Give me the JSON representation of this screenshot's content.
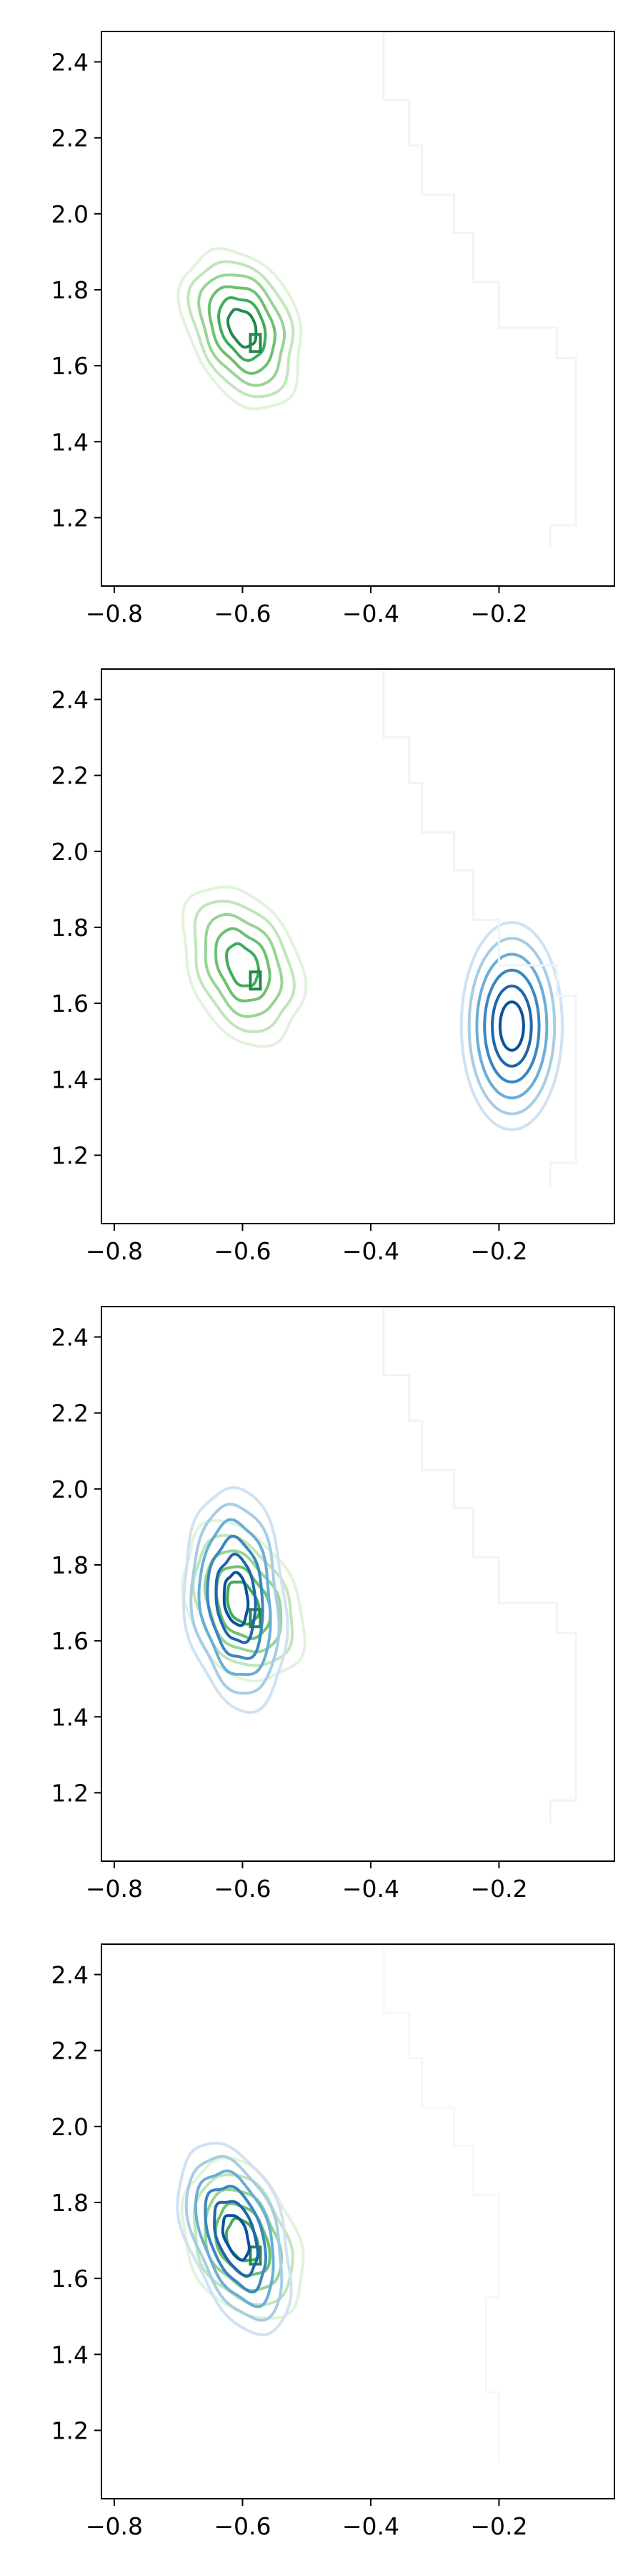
{
  "figure": {
    "background": "#ffffff"
  },
  "chart_data": [
    {
      "type": "contour",
      "panel": 1,
      "xlim": [
        -0.82,
        -0.02
      ],
      "ylim": [
        1.02,
        2.48
      ],
      "x_ticks": [
        -0.8,
        -0.6,
        -0.4,
        -0.2
      ],
      "y_ticks": [
        1.2,
        1.4,
        1.6,
        1.8,
        2.0,
        2.2,
        2.4
      ],
      "x_tick_labels": [
        "−0.8",
        "−0.6",
        "−0.4",
        "−0.2"
      ],
      "y_tick_labels": [
        "1.2",
        "1.4",
        "1.6",
        "1.8",
        "2.0",
        "2.2",
        "2.4"
      ],
      "grid": false,
      "legend": "none",
      "series": [
        {
          "colormap": "Greens",
          "colors": [
            "#e1f3dc",
            "#c0e6b9",
            "#98d594",
            "#6ec071",
            "#41ab5d",
            "#23884c"
          ],
          "center": [
            -0.6,
            1.7
          ],
          "spread": [
            0.085,
            0.2
          ],
          "tilt": -0.28,
          "peak_secondary": [
            -0.58,
            1.66
          ],
          "levels": 6
        },
        {
          "colormap": "Blues",
          "colors": [
            "#eef4fb"
          ],
          "kind": "faint-outline",
          "points": [
            [
              -0.36,
              2.48
            ],
            [
              -0.38,
              2.3
            ],
            [
              -0.34,
              2.18
            ],
            [
              -0.32,
              2.05
            ],
            [
              -0.27,
              1.95
            ],
            [
              -0.24,
              1.82
            ],
            [
              -0.2,
              1.7
            ],
            [
              -0.11,
              1.62
            ],
            [
              -0.08,
              1.55
            ],
            [
              -0.08,
              1.18
            ],
            [
              -0.12,
              1.12
            ]
          ]
        }
      ]
    },
    {
      "type": "contour",
      "panel": 2,
      "xlim": [
        -0.82,
        -0.02
      ],
      "ylim": [
        1.02,
        2.48
      ],
      "x_ticks": [
        -0.8,
        -0.6,
        -0.4,
        -0.2
      ],
      "y_ticks": [
        1.2,
        1.4,
        1.6,
        1.8,
        2.0,
        2.2,
        2.4
      ],
      "x_tick_labels": [
        "−0.8",
        "−0.6",
        "−0.4",
        "−0.2"
      ],
      "y_tick_labels": [
        "1.2",
        "1.4",
        "1.6",
        "1.8",
        "2.0",
        "2.2",
        "2.4"
      ],
      "grid": false,
      "legend": "none",
      "series": [
        {
          "colormap": "Greens",
          "colors": [
            "#e1f3dc",
            "#c0e6b9",
            "#98d594",
            "#6ec071",
            "#41ab5d",
            "#23884c"
          ],
          "center": [
            -0.6,
            1.7
          ],
          "spread": [
            0.085,
            0.2
          ],
          "tilt": -0.28,
          "peak_secondary": [
            -0.58,
            1.66
          ],
          "levels": 5
        },
        {
          "colormap": "Blues",
          "colors": [
            "#d0e1f2",
            "#a6cde4",
            "#6aaed6",
            "#3a87c0",
            "#1f66ab",
            "#08519c"
          ],
          "center": [
            -0.18,
            1.54
          ],
          "spread": [
            0.075,
            0.26
          ],
          "tilt": 0.0,
          "levels": 6
        },
        {
          "colormap": "Blues",
          "colors": [
            "#eef4fb"
          ],
          "kind": "faint-outline",
          "points": [
            [
              -0.36,
              2.48
            ],
            [
              -0.38,
              2.3
            ],
            [
              -0.34,
              2.18
            ],
            [
              -0.32,
              2.05
            ],
            [
              -0.27,
              1.95
            ],
            [
              -0.24,
              1.82
            ],
            [
              -0.2,
              1.7
            ],
            [
              -0.11,
              1.62
            ],
            [
              -0.08,
              1.55
            ],
            [
              -0.08,
              1.18
            ],
            [
              -0.12,
              1.12
            ]
          ]
        }
      ]
    },
    {
      "type": "contour",
      "panel": 3,
      "xlim": [
        -0.82,
        -0.02
      ],
      "ylim": [
        1.02,
        2.48
      ],
      "x_ticks": [
        -0.8,
        -0.6,
        -0.4,
        -0.2
      ],
      "y_ticks": [
        1.2,
        1.4,
        1.6,
        1.8,
        2.0,
        2.2,
        2.4
      ],
      "x_tick_labels": [
        "−0.8",
        "−0.6",
        "−0.4",
        "−0.2"
      ],
      "y_tick_labels": [
        "1.2",
        "1.4",
        "1.6",
        "1.8",
        "2.0",
        "2.2",
        "2.4"
      ],
      "grid": false,
      "legend": "none",
      "series": [
        {
          "colormap": "Greens",
          "colors": [
            "#e1f3dc",
            "#c0e6b9",
            "#98d594",
            "#6ec071",
            "#41ab5d",
            "#23884c"
          ],
          "center": [
            -0.6,
            1.7
          ],
          "spread": [
            0.085,
            0.2
          ],
          "tilt": -0.28,
          "peak_secondary": [
            -0.58,
            1.66
          ],
          "levels": 5
        },
        {
          "colormap": "Blues",
          "colors": [
            "#d0e1f2",
            "#a6cde4",
            "#6aaed6",
            "#3a87c0",
            "#1f66ab",
            "#08519c"
          ],
          "center": [
            -0.61,
            1.71
          ],
          "spread": [
            0.075,
            0.28
          ],
          "tilt": -0.08,
          "levels": 6
        },
        {
          "colormap": "Blues",
          "colors": [
            "#eef4fb"
          ],
          "kind": "faint-outline",
          "points": [
            [
              -0.36,
              2.48
            ],
            [
              -0.38,
              2.3
            ],
            [
              -0.34,
              2.18
            ],
            [
              -0.32,
              2.05
            ],
            [
              -0.27,
              1.95
            ],
            [
              -0.24,
              1.82
            ],
            [
              -0.2,
              1.7
            ],
            [
              -0.11,
              1.62
            ],
            [
              -0.08,
              1.55
            ],
            [
              -0.08,
              1.18
            ],
            [
              -0.12,
              1.12
            ]
          ]
        }
      ]
    },
    {
      "type": "contour",
      "panel": 4,
      "xlim": [
        -0.82,
        -0.02
      ],
      "ylim": [
        1.02,
        2.48
      ],
      "x_ticks": [
        -0.8,
        -0.6,
        -0.4,
        -0.2
      ],
      "y_ticks": [
        1.2,
        1.4,
        1.6,
        1.8,
        2.0,
        2.2,
        2.4
      ],
      "x_tick_labels": [
        "−0.8",
        "−0.6",
        "−0.4",
        "−0.2"
      ],
      "y_tick_labels": [
        "1.2",
        "1.4",
        "1.6",
        "1.8",
        "2.0",
        "2.2",
        "2.4"
      ],
      "grid": false,
      "legend": "none",
      "series": [
        {
          "colormap": "Greens",
          "colors": [
            "#e1f3dc",
            "#c0e6b9",
            "#98d594",
            "#6ec071",
            "#41ab5d",
            "#23884c"
          ],
          "center": [
            -0.6,
            1.7
          ],
          "spread": [
            0.085,
            0.2
          ],
          "tilt": -0.28,
          "peak_secondary": [
            -0.58,
            1.66
          ],
          "levels": 5
        },
        {
          "colormap": "Blues",
          "colors": [
            "#d0e1f2",
            "#a6cde4",
            "#6aaed6",
            "#3a87c0",
            "#1f66ab",
            "#08519c"
          ],
          "center": [
            -0.61,
            1.71
          ],
          "spread": [
            0.075,
            0.24
          ],
          "tilt": -0.3,
          "levels": 6
        },
        {
          "colormap": "Greens",
          "colors": [
            "#f4faf1"
          ],
          "kind": "faint-outline",
          "points": [
            [
              -0.36,
              2.48
            ],
            [
              -0.38,
              2.3
            ],
            [
              -0.34,
              2.18
            ],
            [
              -0.32,
              2.05
            ],
            [
              -0.27,
              1.95
            ],
            [
              -0.24,
              1.82
            ],
            [
              -0.2,
              1.7
            ],
            [
              -0.2,
              1.55
            ],
            [
              -0.22,
              1.3
            ],
            [
              -0.2,
              1.12
            ]
          ]
        }
      ]
    }
  ]
}
